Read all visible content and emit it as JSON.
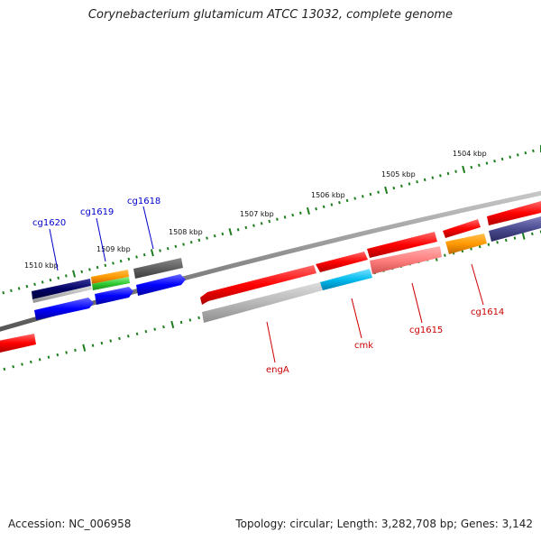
{
  "title": "Corynebacterium glutamicum ATCC 13032, complete genome",
  "footer": {
    "accession": "Accession: NC_006958",
    "summary": "Topology: circular; Length: 3,282,708 bp; Genes: 3,142"
  },
  "ticks": [
    "1504 kbp",
    "1505 kbp",
    "1506 kbp",
    "1507 kbp",
    "1508 kbp",
    "1509 kbp",
    "1510 kbp"
  ],
  "gene_labels": [
    {
      "name": "cg1620",
      "color": "#0000cc"
    },
    {
      "name": "cg1619",
      "color": "#0000cc"
    },
    {
      "name": "cg1618",
      "color": "#0000cc"
    },
    {
      "name": "engA",
      "color": "#cc0000"
    },
    {
      "name": "cmk",
      "color": "#cc0000"
    },
    {
      "name": "cg1615",
      "color": "#cc0000"
    },
    {
      "name": "cg1614",
      "color": "#cc0000"
    }
  ],
  "colors": {
    "backbone": "#8c8c8c",
    "tick": "#1e7d1e",
    "forward_strand": "#ff0000",
    "reverse_strand": "#0000ff",
    "reverse_label": "#0000cc",
    "forward_label": "#cc0000"
  }
}
